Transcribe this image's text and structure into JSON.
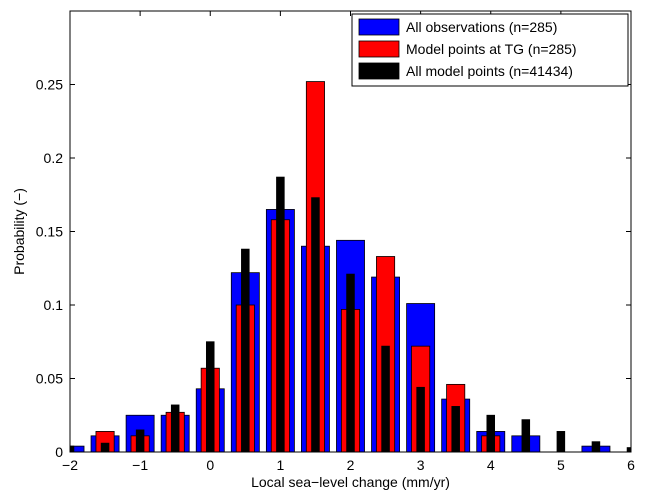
{
  "chart_data": {
    "type": "bar",
    "title": "",
    "xlabel": "Local sea−level change (mm/yr)",
    "ylabel": "Probability (−)",
    "xlim": [
      -2,
      6
    ],
    "ylim": [
      0,
      0.3
    ],
    "grid": false,
    "legend_position": "top-right",
    "x_ticks": [
      -2,
      -1,
      0,
      1,
      2,
      3,
      4,
      5,
      6
    ],
    "x_tick_labels": [
      "−2",
      "−1",
      "0",
      "1",
      "2",
      "3",
      "4",
      "5",
      "6"
    ],
    "y_ticks": [
      0,
      0.05,
      0.1,
      0.15,
      0.2,
      0.25
    ],
    "y_tick_labels": [
      "0",
      "0.05",
      "0.1",
      "0.15",
      "0.2",
      "0.25"
    ],
    "x": [
      -2,
      -1.5,
      -1,
      -0.5,
      0,
      0.5,
      1,
      1.5,
      2,
      2.5,
      3,
      3.5,
      4,
      4.5,
      5,
      5.5,
      6
    ],
    "series": [
      {
        "name": "All observations (n=285)",
        "color": "#0000ff",
        "width": 0.4,
        "values": [
          0.004,
          0.011,
          0.025,
          0.025,
          0.043,
          0.122,
          0.165,
          0.14,
          0.144,
          0.119,
          0.101,
          0.036,
          0.014,
          0.011,
          0.0,
          0.004,
          0.0
        ]
      },
      {
        "name": "Model points at TG (n=285)",
        "color": "#ff0000",
        "width": 0.26,
        "values": [
          0.0,
          0.014,
          0.011,
          0.027,
          0.057,
          0.1,
          0.158,
          0.252,
          0.097,
          0.133,
          0.072,
          0.046,
          0.011,
          0.0,
          0.0,
          0.0,
          0.0
        ]
      },
      {
        "name": "All model points (n=41434)",
        "color": "#000000",
        "width": 0.11,
        "values": [
          0.004,
          0.006,
          0.015,
          0.032,
          0.075,
          0.138,
          0.187,
          0.173,
          0.121,
          0.072,
          0.044,
          0.031,
          0.025,
          0.022,
          0.014,
          0.007,
          0.003
        ]
      }
    ]
  }
}
